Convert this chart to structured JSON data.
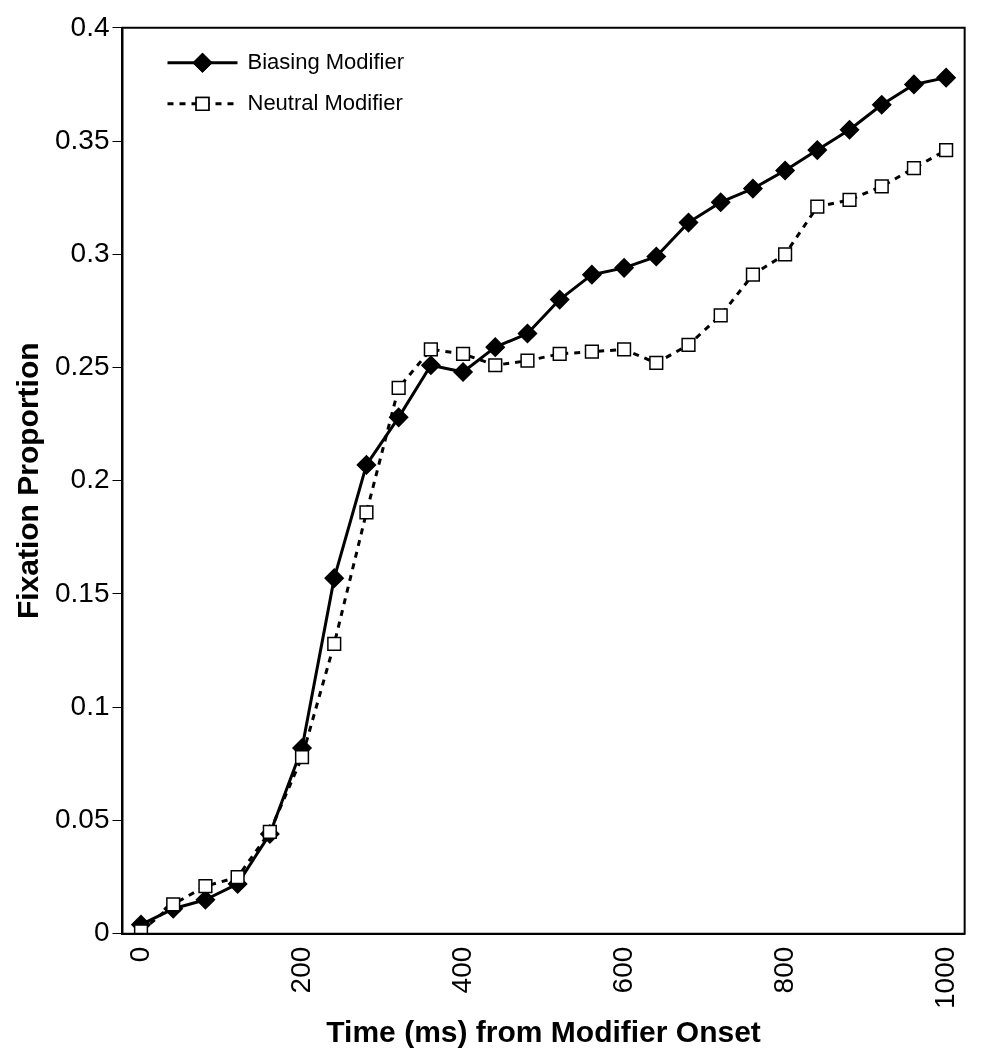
{
  "chart_data": {
    "type": "line",
    "xlabel": "Time (ms) from Modifier Onset",
    "ylabel": "Fixation Proportion",
    "x": [
      0,
      40,
      80,
      120,
      160,
      200,
      240,
      280,
      320,
      360,
      400,
      440,
      480,
      520,
      560,
      600,
      640,
      680,
      720,
      760,
      800,
      840,
      880,
      920,
      960,
      1000
    ],
    "series": [
      {
        "name": "Biasing Modifier",
        "color": "#000000",
        "marker": "diamond",
        "line_style": "solid",
        "values": [
          0.004,
          0.011,
          0.015,
          0.022,
          0.044,
          0.082,
          0.157,
          0.207,
          0.228,
          0.251,
          0.248,
          0.259,
          0.265,
          0.28,
          0.291,
          0.294,
          0.299,
          0.314,
          0.323,
          0.329,
          0.337,
          0.346,
          0.355,
          0.366,
          0.375,
          0.378
        ]
      },
      {
        "name": "Neutral Modifier",
        "color": "#000000",
        "marker": "square",
        "line_style": "dashed",
        "values": [
          0.001,
          0.013,
          0.021,
          0.025,
          0.045,
          0.078,
          0.128,
          0.186,
          0.241,
          0.258,
          0.256,
          0.251,
          0.253,
          0.256,
          0.257,
          0.258,
          0.252,
          0.26,
          0.273,
          0.291,
          0.3,
          0.321,
          0.324,
          0.33,
          0.338,
          0.346
        ]
      }
    ],
    "xlim": [
      -23,
      1023
    ],
    "xticks": [
      0,
      200,
      400,
      600,
      800,
      1000
    ],
    "ylim": [
      0,
      0.4
    ],
    "yticks": [
      0,
      0.05,
      0.1,
      0.15,
      0.2,
      0.25,
      0.3,
      0.35,
      0.4
    ],
    "grid": false,
    "legend": "top left"
  }
}
